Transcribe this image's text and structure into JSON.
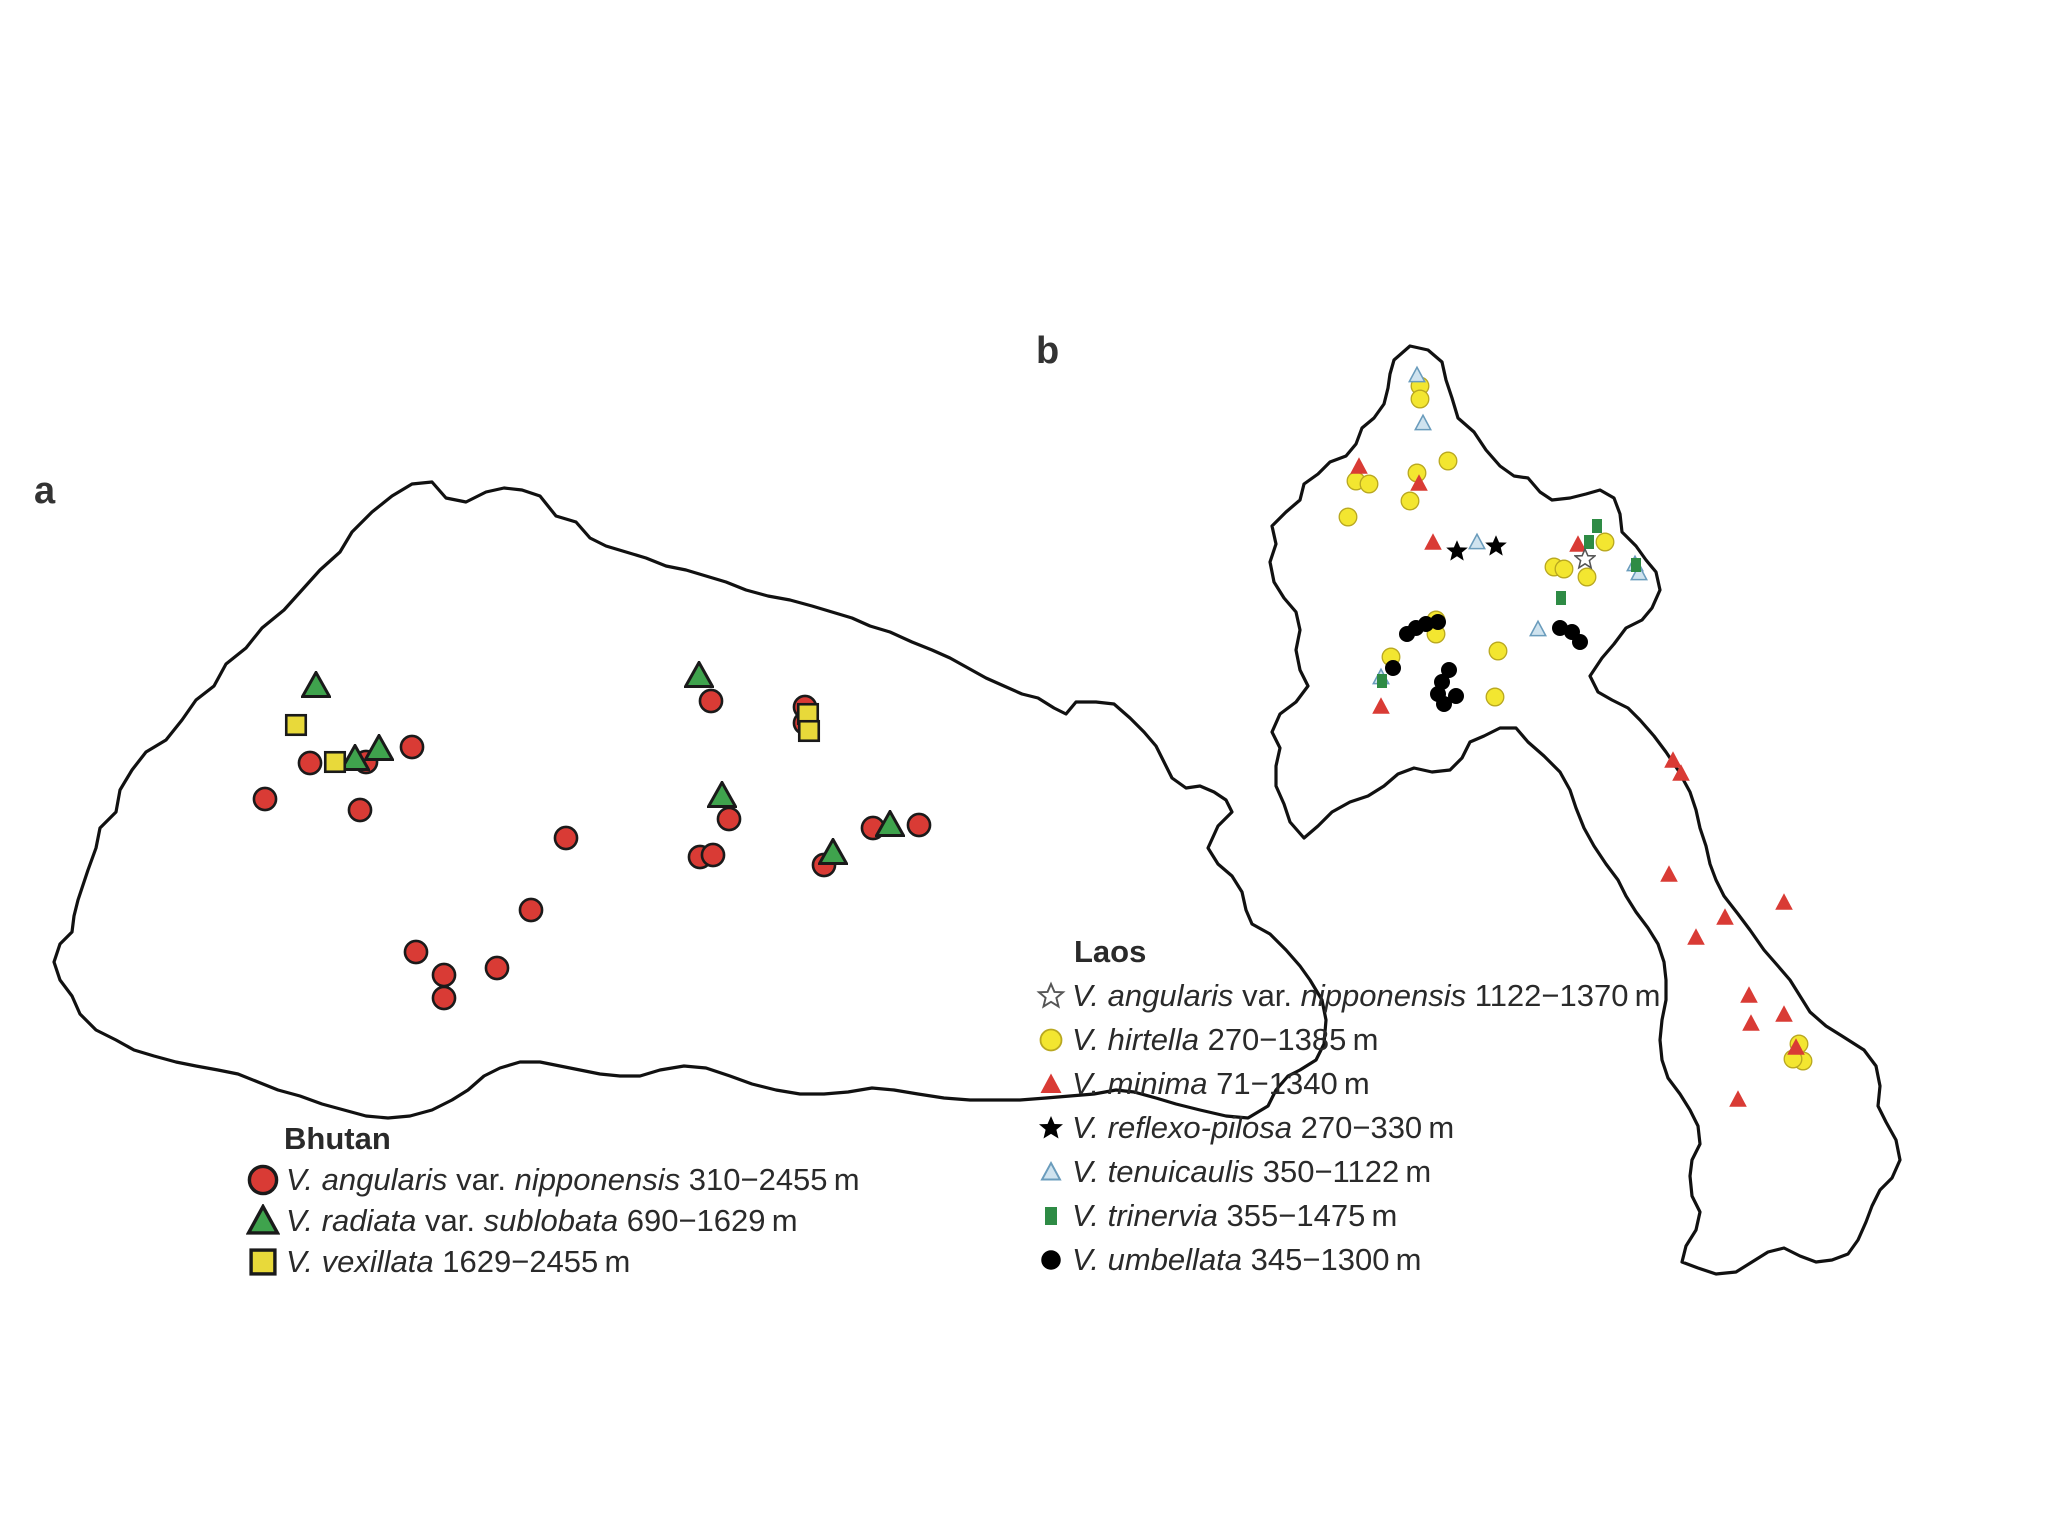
{
  "panels": [
    {
      "label": "a",
      "legend_title": "Bhutan",
      "species": [
        {
          "genus": "V.",
          "name": "angularis",
          "mid": "var.",
          "name2": "nipponensis",
          "range": "310−2455 m",
          "symbol": "circle",
          "fill": "#d93b35"
        },
        {
          "genus": "V.",
          "name": "radiata",
          "mid": "var.",
          "name2": "sublobata",
          "range": "690−1629 m",
          "symbol": "triangle",
          "fill": "#3fa34d"
        },
        {
          "genus": "V.",
          "name": "vexillata",
          "mid": "",
          "name2": "",
          "range": "1629−2455 m",
          "symbol": "square",
          "fill": "#e8d93a"
        }
      ]
    },
    {
      "label": "b",
      "legend_title": "Laos",
      "species": [
        {
          "genus": "V.",
          "name": "angularis",
          "mid": "var.",
          "name2": "nipponensis",
          "range": "1122−1370 m",
          "symbol": "star-open",
          "fill": "#ffffff"
        },
        {
          "genus": "V.",
          "name": "hirtella",
          "mid": "",
          "name2": "",
          "range": "270−1385 m",
          "symbol": "circle",
          "fill": "#f3e630"
        },
        {
          "genus": "V.",
          "name": "minima",
          "mid": "",
          "name2": "",
          "range": "71−1340 m",
          "symbol": "triangle",
          "fill": "#d93b35"
        },
        {
          "genus": "V.",
          "name": "reflexo-pilosa",
          "mid": "",
          "name2": "",
          "range": "270−330 m",
          "symbol": "star",
          "fill": "#000000"
        },
        {
          "genus": "V.",
          "name": "tenuicaulis",
          "mid": "",
          "name2": "",
          "range": "350−1122 m",
          "symbol": "triangle-small",
          "fill": "#9ac4dc"
        },
        {
          "genus": "V.",
          "name": "trinervia",
          "mid": "",
          "name2": "",
          "range": "355−1475 m",
          "symbol": "rect-small",
          "fill": "#2e8b45"
        },
        {
          "genus": "V.",
          "name": "umbellata",
          "mid": "",
          "name2": "",
          "range": "345−1300 m",
          "symbol": "circle-black",
          "fill": "#000000"
        }
      ]
    }
  ]
}
